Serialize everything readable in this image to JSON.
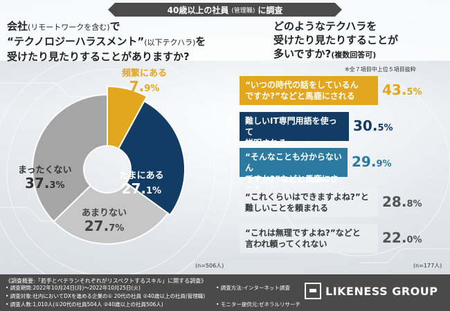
{
  "header": {
    "survey_title": "40歳以上の社員",
    "survey_title_small": "(管理職)",
    "survey_title_suffix": "に調査"
  },
  "left_question": {
    "line1_a": "会社",
    "line1_b": "(リモートワークを含む)",
    "line1_c": "で",
    "line2_a": "“テクノロジーハラスメント”",
    "line2_b": "(以下テクハラ)",
    "line2_c": "を",
    "line3": "受けたり見たりすることがありますか?"
  },
  "right_question": {
    "line1": "どのようなテクハラを",
    "line2": "受けたり見たりすることが",
    "line3_a": "多いですか?",
    "line3_b": "(複数回答可)"
  },
  "right_note": "※全７項目中上位５項目抜粋",
  "chart_data": [
    {
      "type": "pie",
      "title": "会社でテクハラを受けたり見たりすることがありますか?",
      "sample": "(n=506人)",
      "slices": [
        {
          "name": "頻繁にある",
          "value": 7.9,
          "value_main": "7.",
          "value_dec": "9%",
          "color": "#e3a61f"
        },
        {
          "name": "たまにある",
          "value": 27.1,
          "value_main": "27.",
          "value_dec": "1%",
          "color": "#123c63"
        },
        {
          "name": "あまりない",
          "value": 27.7,
          "value_main": "27.",
          "value_dec": "7%",
          "color": "#c6c6c6"
        },
        {
          "name": "まったくない",
          "value": 37.3,
          "value_main": "37.",
          "value_dec": "3%",
          "color": "#a5a5a5"
        }
      ]
    },
    {
      "type": "bar",
      "title": "どのようなテクハラを受けたり見たりすることが多いですか?",
      "sample": "(n=177人)",
      "items": [
        {
          "line1": "“いつの時代の話をしているん",
          "line2": "ですか?”などと馬鹿にされる",
          "value": 43.5,
          "value_main": "43.",
          "value_dec": "5%",
          "color": "#e3a61f",
          "value_color": "#e3a61f"
        },
        {
          "line1": "難しいIT専門用語を使って",
          "line2": "説明される",
          "value": 30.5,
          "value_main": "30.",
          "value_dec": "5%",
          "color": "#123c63",
          "value_color": "#123c63"
        },
        {
          "line1": "“そんなことも分からないん",
          "line2": "ですか?”などと馬鹿にされる",
          "value": 29.9,
          "value_main": "29.",
          "value_dec": "9%",
          "color": "#2c7a9f",
          "value_color": "#2c7a9f"
        },
        {
          "line1": "“これくらいはできますよね?”と",
          "line2": "難しいことを頼まれる",
          "value": 28.8,
          "value_main": "28.",
          "value_dec": "8%",
          "color": "",
          "value_color": "#555555"
        },
        {
          "line1": "“これは無理ですよね?”などと",
          "line2": "言われ頼ってくれない",
          "value": 22.0,
          "value_main": "22.",
          "value_dec": "0%",
          "color": "",
          "value_color": "#555555"
        }
      ]
    }
  ],
  "footer": {
    "title": "《調査概要:「若手とベテランそれぞれがリスペクトするスキル」に関する調査》",
    "period": "• 調査期間:2022年10月24日(月)〜2022年10月25日(火)",
    "method": "• 調査方法:インターネット調査",
    "target": "• 調査対象:社内においてDXを進める企業の① 20代の社員 ②40歳以上の社員(管理職)",
    "count": "• 調査人数:1,010人(①20代の社員504人 ②40歳以上の社員506人)",
    "monitor": "• モニター提供元:ゼネラルリサーチ",
    "brand": "LIKENESS GROUP"
  }
}
